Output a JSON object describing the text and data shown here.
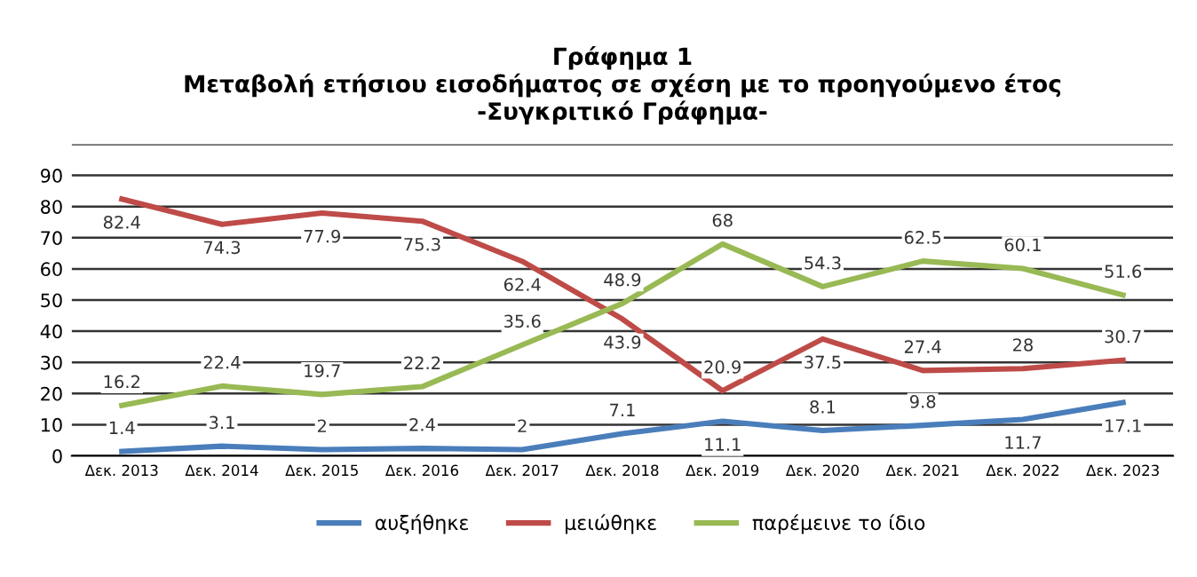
{
  "chart_data": {
    "type": "line",
    "title": "Γράφημα 1\nΜεταβολή ετήσιου εισοδήματος σε σχέση με το προηγούμενο έτος\n-Συγκριτικό Γράφημα-",
    "categories": [
      "Δεκ. 2013",
      "Δεκ. 2014",
      "Δεκ. 2015",
      "Δεκ. 2016",
      "Δεκ. 2017",
      "Δεκ. 2018",
      "Δεκ. 2019",
      "Δεκ. 2020",
      "Δεκ. 2021",
      "Δεκ. 2022",
      "Δεκ. 2023"
    ],
    "series": [
      {
        "name": "αυξήθηκε",
        "color": "#4a7ebb",
        "values": [
          1.4,
          3.1,
          2,
          2.4,
          2,
          7.1,
          11.1,
          8.1,
          9.8,
          11.7,
          17.1
        ]
      },
      {
        "name": "μειώθηκε",
        "color": "#be4b48",
        "values": [
          82.4,
          74.3,
          77.9,
          75.3,
          62.4,
          43.9,
          20.9,
          37.5,
          27.4,
          28,
          30.7
        ]
      },
      {
        "name": "παρέμεινε το ίδιο",
        "color": "#98b954",
        "values": [
          16.2,
          22.4,
          19.7,
          22.2,
          35.6,
          48.9,
          68,
          54.3,
          62.5,
          60.1,
          51.6
        ]
      }
    ],
    "ylim": [
      0,
      100
    ],
    "yticks": [
      0,
      10,
      20,
      30,
      40,
      50,
      60,
      70,
      80,
      90,
      {
        "value": 100,
        "label": null
      }
    ],
    "grid": "y",
    "legend": "bottom",
    "marker": "none",
    "line_style": "solid",
    "data_labels": true
  }
}
